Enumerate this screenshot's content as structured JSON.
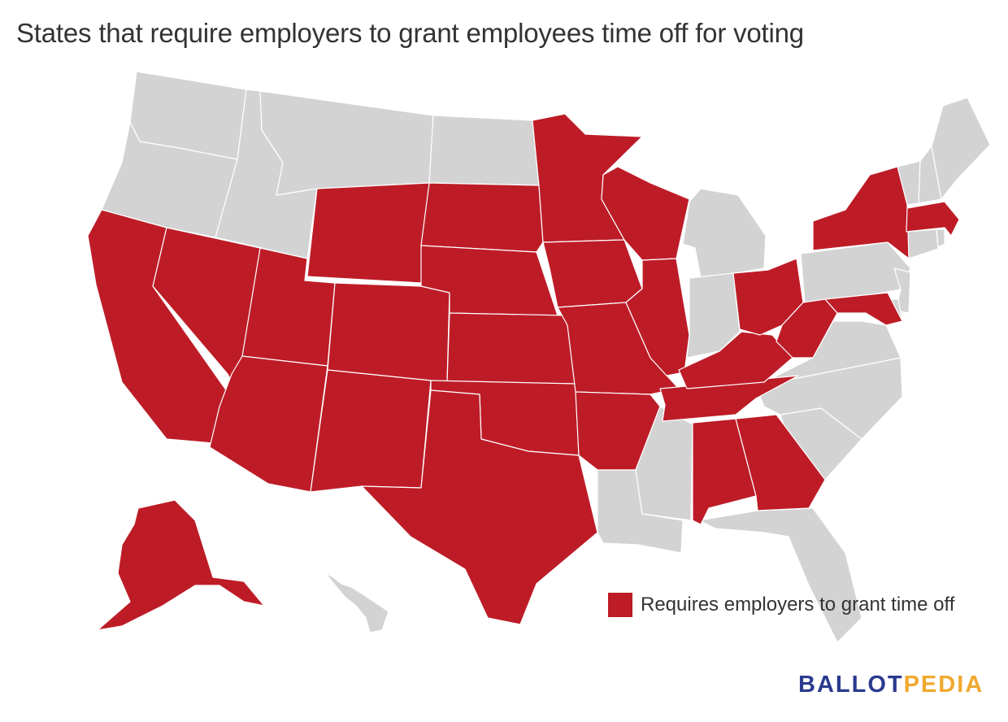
{
  "title": "States that require employers to grant employees time off for voting",
  "colors": {
    "requires": "#bd1c27",
    "other": "#d3d3d3",
    "border": "#ffffff",
    "logo_ballot": "#2b3a8f",
    "logo_pedia": "#f0a92e"
  },
  "legend": {
    "label": "Requires employers to grant time off"
  },
  "logo": {
    "part1": "BALLOT",
    "part2": "PEDIA"
  },
  "map_data": {
    "requires_time_off": [
      "CA",
      "NV",
      "UT",
      "AZ",
      "WY",
      "CO",
      "NM",
      "SD",
      "NE",
      "KS",
      "OK",
      "TX",
      "MN",
      "IA",
      "MO",
      "AR",
      "WI",
      "IL",
      "TN",
      "KY",
      "OH",
      "WV",
      "MD",
      "AL",
      "GA",
      "NY",
      "MA",
      "AK"
    ],
    "no_requirement": [
      "WA",
      "OR",
      "ID",
      "MT",
      "ND",
      "MI",
      "IN",
      "MS",
      "LA",
      "FL",
      "SC",
      "NC",
      "VA",
      "PA",
      "NJ",
      "DE",
      "CT",
      "RI",
      "VT",
      "NH",
      "ME",
      "HI"
    ]
  }
}
